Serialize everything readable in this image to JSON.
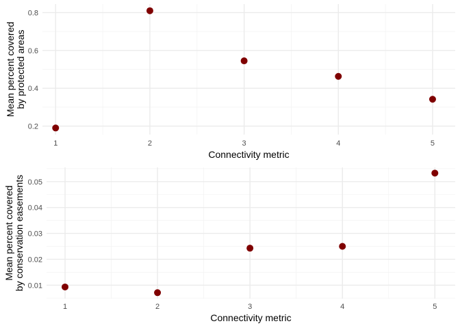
{
  "colors": {
    "point": "#7f0000",
    "grid_major": "#ebebeb",
    "grid_minor": "#f3f3f3"
  },
  "chart_data": [
    {
      "type": "scatter",
      "xlabel": "Connectivity metric",
      "ylabel_lines": [
        "Mean percent covered",
        "by protected areas"
      ],
      "x": [
        1,
        2,
        3,
        4,
        5
      ],
      "y": [
        0.19,
        0.81,
        0.545,
        0.463,
        0.342
      ],
      "xlim": [
        0.86,
        5.24
      ],
      "ylim": [
        0.155,
        0.845
      ],
      "xticks": [
        1,
        2,
        3,
        4,
        5
      ],
      "yticks": [
        0.2,
        0.4,
        0.6,
        0.8
      ],
      "ytick_labels": [
        "0.2",
        "0.4",
        "0.6",
        "0.8"
      ],
      "grid": true,
      "legend": "none"
    },
    {
      "type": "scatter",
      "xlabel": "Connectivity metric",
      "ylabel_lines": [
        "Mean percent covered",
        "by conservation easements"
      ],
      "x": [
        1,
        2,
        3,
        4,
        5
      ],
      "y": [
        0.0093,
        0.0071,
        0.0243,
        0.025,
        0.0533
      ],
      "xlim": [
        0.8,
        5.22
      ],
      "ylim": [
        0.0048,
        0.0555
      ],
      "xticks": [
        1,
        2,
        3,
        4,
        5
      ],
      "yticks": [
        0.01,
        0.02,
        0.03,
        0.04,
        0.05
      ],
      "ytick_labels": [
        "0.01",
        "0.02",
        "0.03",
        "0.04",
        "0.05"
      ],
      "grid": true,
      "legend": "none"
    }
  ]
}
